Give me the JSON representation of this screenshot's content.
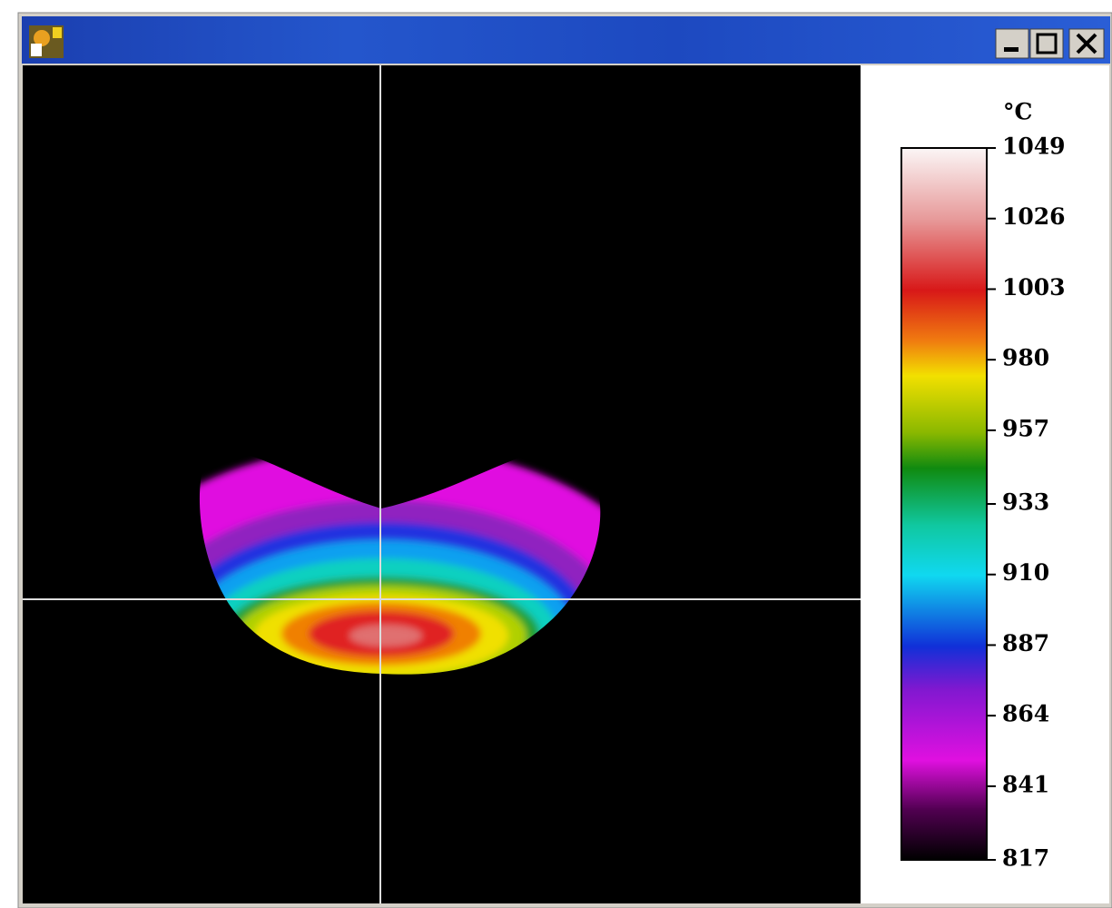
{
  "colorbar": {
    "unit": "°C",
    "range": [
      817,
      1049
    ],
    "ticks": [
      1049,
      1026,
      1003,
      980,
      957,
      933,
      910,
      887,
      864,
      841,
      817
    ]
  }
}
